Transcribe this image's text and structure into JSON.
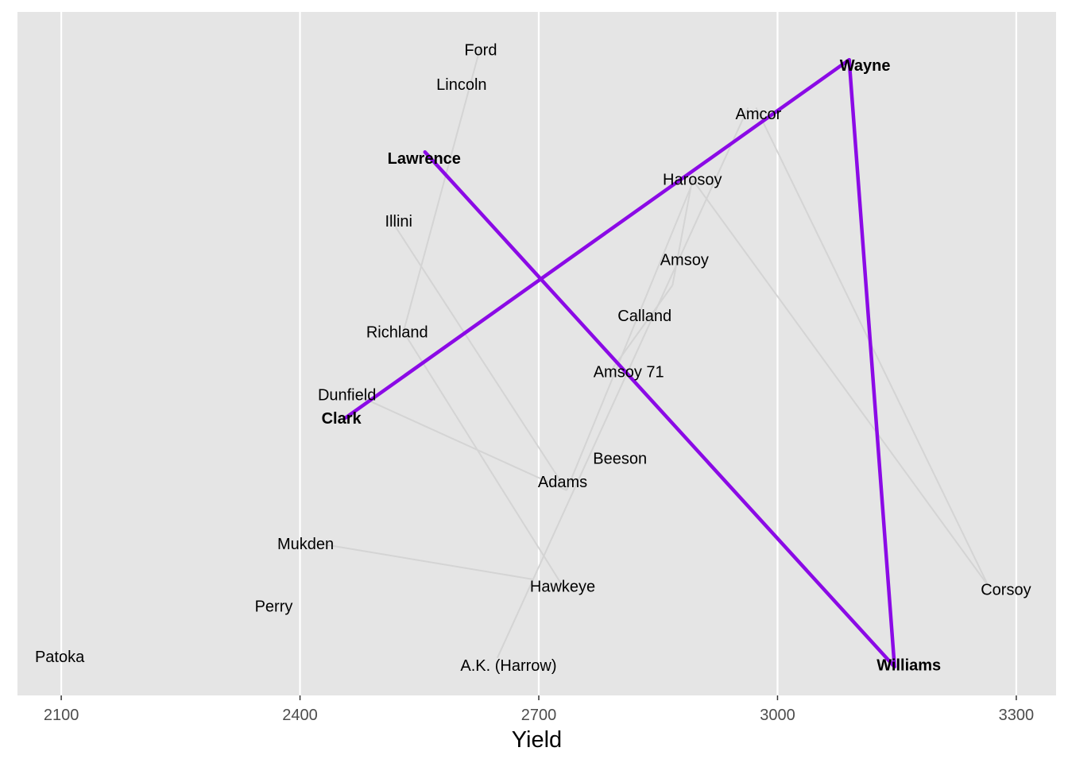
{
  "chart_data": {
    "type": "scatter",
    "title": "",
    "xlabel": "Yield",
    "ylabel": "",
    "xlim": [
      2045,
      3350
    ],
    "ylim": [
      0,
      1
    ],
    "xticks": [
      2100,
      2400,
      2700,
      3000,
      3300
    ],
    "grid": true,
    "colors": {
      "panel": "#e5e5e5",
      "grid": "#ffffff",
      "pedigree_line": "#d4d4d4",
      "highlight_line": "#8b0ae6"
    },
    "points": [
      {
        "name": "Ford",
        "x": 2627,
        "y": 0.945,
        "bold": false
      },
      {
        "name": "Lincoln",
        "x": 2603,
        "y": 0.894,
        "bold": false
      },
      {
        "name": "Wayne",
        "x": 3110,
        "y": 0.922,
        "bold": true
      },
      {
        "name": "Amcor",
        "x": 2976,
        "y": 0.851,
        "bold": false
      },
      {
        "name": "Lawrence",
        "x": 2556,
        "y": 0.786,
        "bold": true
      },
      {
        "name": "Harosoy",
        "x": 2893,
        "y": 0.755,
        "bold": false
      },
      {
        "name": "Illini",
        "x": 2524,
        "y": 0.694,
        "bold": false
      },
      {
        "name": "Amsoy",
        "x": 2883,
        "y": 0.638,
        "bold": false
      },
      {
        "name": "Calland",
        "x": 2833,
        "y": 0.556,
        "bold": false
      },
      {
        "name": "Richland",
        "x": 2522,
        "y": 0.532,
        "bold": false
      },
      {
        "name": "Amsoy 71",
        "x": 2813,
        "y": 0.474,
        "bold": false
      },
      {
        "name": "Dunfield",
        "x": 2459,
        "y": 0.44,
        "bold": false
      },
      {
        "name": "Clark",
        "x": 2452,
        "y": 0.406,
        "bold": true
      },
      {
        "name": "Beeson",
        "x": 2802,
        "y": 0.347,
        "bold": false
      },
      {
        "name": "Adams",
        "x": 2730,
        "y": 0.313,
        "bold": false
      },
      {
        "name": "Mukden",
        "x": 2407,
        "y": 0.222,
        "bold": false
      },
      {
        "name": "Hawkeye",
        "x": 2730,
        "y": 0.16,
        "bold": false
      },
      {
        "name": "Corsoy",
        "x": 3287,
        "y": 0.155,
        "bold": false
      },
      {
        "name": "Perry",
        "x": 2367,
        "y": 0.131,
        "bold": false
      },
      {
        "name": "Patoka",
        "x": 2098,
        "y": 0.057,
        "bold": false
      },
      {
        "name": "A.K. (Harrow)",
        "x": 2662,
        "y": 0.044,
        "bold": false
      },
      {
        "name": "Williams",
        "x": 3165,
        "y": 0.045,
        "bold": true
      }
    ],
    "pedigree_edges": [
      [
        2627,
        0.95,
        2530,
        0.532
      ],
      [
        2530,
        0.532,
        2730,
        0.16
      ],
      [
        2425,
        0.222,
        2692,
        0.17
      ],
      [
        2512,
        0.7,
        2735,
        0.3
      ],
      [
        2470,
        0.44,
        2735,
        0.3
      ],
      [
        2735,
        0.3,
        2895,
        0.755
      ],
      [
        2648,
        0.055,
        2963,
        0.86
      ],
      [
        2893,
        0.755,
        2868,
        0.6
      ],
      [
        2893,
        0.755,
        3265,
        0.16
      ],
      [
        2973,
        0.86,
        3265,
        0.16
      ],
      [
        2868,
        0.6,
        2790,
        0.474
      ]
    ],
    "highlight_edges": [
      [
        2457,
        0.406,
        3090,
        0.93
      ],
      [
        3090,
        0.93,
        3147,
        0.042
      ],
      [
        2557,
        0.795,
        3147,
        0.042
      ]
    ]
  }
}
